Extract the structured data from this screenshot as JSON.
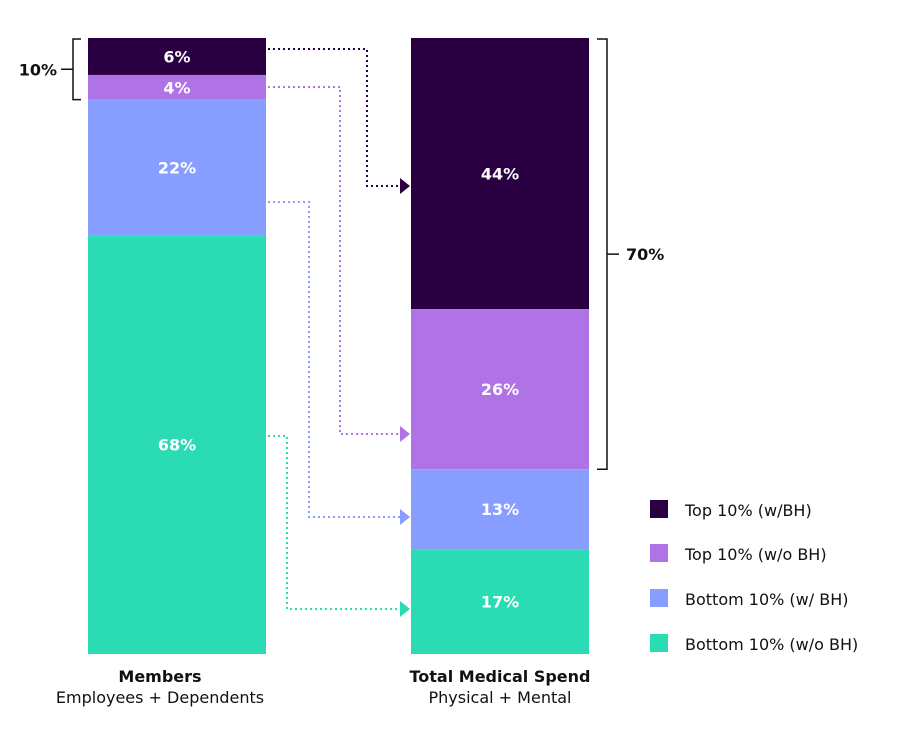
{
  "chart_data": {
    "type": "bar",
    "stacked": true,
    "normalized_percent": true,
    "categories": [
      {
        "title": "Members",
        "subtitle": "Employees + Dependents"
      },
      {
        "title": "Total Medical Spend",
        "subtitle": "Physical + Mental"
      }
    ],
    "series": [
      {
        "name": "Top 10% (w/BH)",
        "color": "#2b0043",
        "values": [
          6,
          44
        ],
        "labels": [
          "6%",
          "44%"
        ]
      },
      {
        "name": "Top 10% (w/o BH)",
        "color": "#b073e6",
        "values": [
          4,
          26
        ],
        "labels": [
          "4%",
          "26%"
        ]
      },
      {
        "name": "Bottom 10% (w/ BH)",
        "color": "#879dff",
        "values": [
          22,
          13
        ],
        "labels": [
          "22%",
          "13%"
        ]
      },
      {
        "name": "Bottom 10% (w/o BH)",
        "color": "#2adbb4",
        "values": [
          68,
          17
        ],
        "labels": [
          "68%",
          "17%"
        ]
      }
    ],
    "brackets": [
      {
        "category": 0,
        "label": "10%",
        "side": "left",
        "series": [
          0,
          1
        ]
      },
      {
        "category": 1,
        "label": "70%",
        "side": "right",
        "series": [
          0,
          1
        ]
      }
    ],
    "connectors": "dotted arrows from each Members segment to the matching Total Medical Spend segment",
    "legend_position": "bottom-right",
    "ylim": [
      0,
      100
    ],
    "grid": false
  }
}
